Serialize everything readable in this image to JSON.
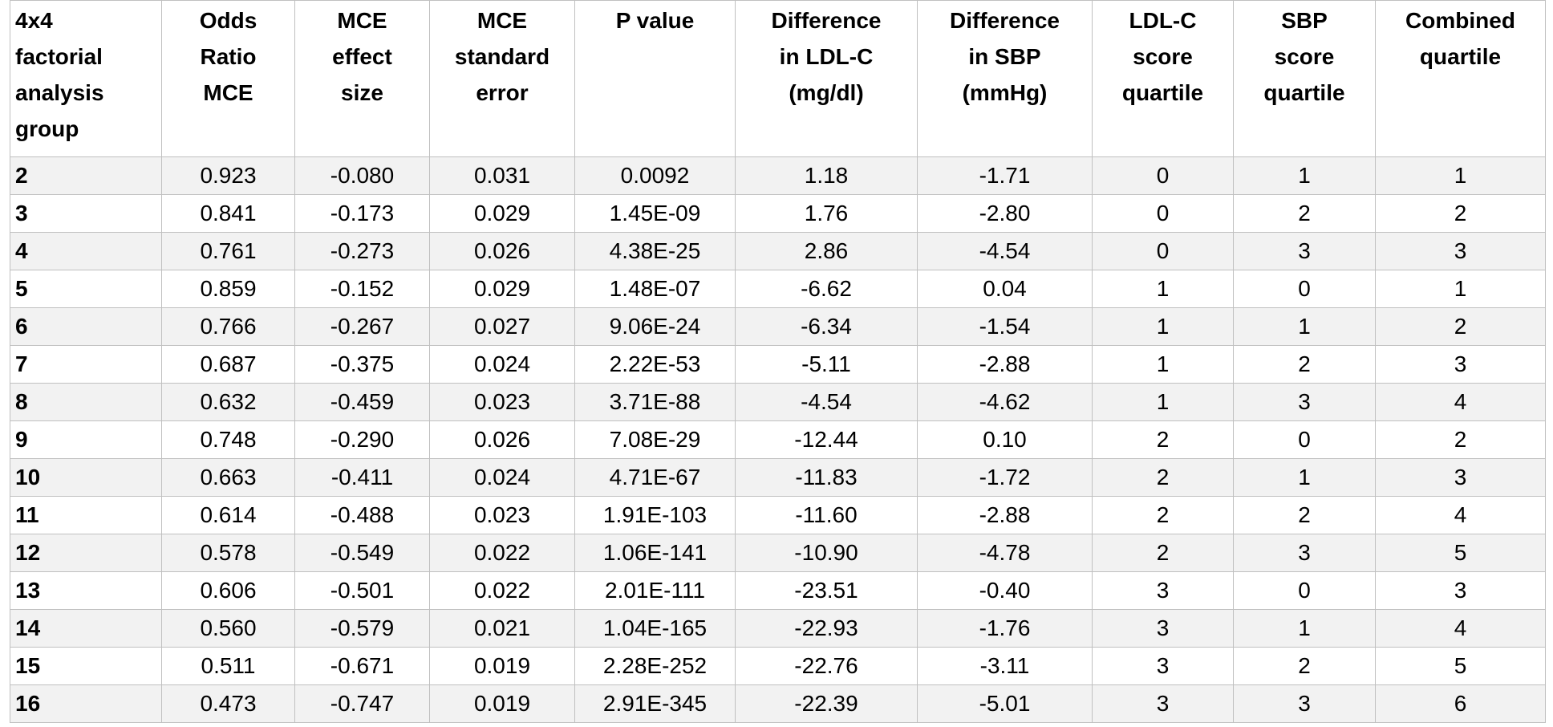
{
  "table": {
    "header": [
      [
        "4x4",
        "factorial",
        "analysis",
        "group"
      ],
      [
        "Odds",
        "Ratio",
        "MCE"
      ],
      [
        "MCE",
        "effect",
        "size"
      ],
      [
        "MCE",
        "standard",
        "error"
      ],
      [
        "P value"
      ],
      [
        "Difference",
        "in LDL-C",
        "(mg/dl)"
      ],
      [
        "Difference",
        "in SBP",
        "(mmHg)"
      ],
      [
        "LDL-C",
        "score",
        "quartile"
      ],
      [
        "SBP",
        "score",
        "quartile"
      ],
      [
        "Combined",
        "quartile"
      ]
    ],
    "rows": [
      [
        "2",
        "0.923",
        "-0.080",
        "0.031",
        "0.0092",
        "1.18",
        "-1.71",
        "0",
        "1",
        "1"
      ],
      [
        "3",
        "0.841",
        "-0.173",
        "0.029",
        "1.45E-09",
        "1.76",
        "-2.80",
        "0",
        "2",
        "2"
      ],
      [
        "4",
        "0.761",
        "-0.273",
        "0.026",
        "4.38E-25",
        "2.86",
        "-4.54",
        "0",
        "3",
        "3"
      ],
      [
        "5",
        "0.859",
        "-0.152",
        "0.029",
        "1.48E-07",
        "-6.62",
        "0.04",
        "1",
        "0",
        "1"
      ],
      [
        "6",
        "0.766",
        "-0.267",
        "0.027",
        "9.06E-24",
        "-6.34",
        "-1.54",
        "1",
        "1",
        "2"
      ],
      [
        "7",
        "0.687",
        "-0.375",
        "0.024",
        "2.22E-53",
        "-5.11",
        "-2.88",
        "1",
        "2",
        "3"
      ],
      [
        "8",
        "0.632",
        "-0.459",
        "0.023",
        "3.71E-88",
        "-4.54",
        "-4.62",
        "1",
        "3",
        "4"
      ],
      [
        "9",
        "0.748",
        "-0.290",
        "0.026",
        "7.08E-29",
        "-12.44",
        "0.10",
        "2",
        "0",
        "2"
      ],
      [
        "10",
        "0.663",
        "-0.411",
        "0.024",
        "4.71E-67",
        "-11.83",
        "-1.72",
        "2",
        "1",
        "3"
      ],
      [
        "11",
        "0.614",
        "-0.488",
        "0.023",
        "1.91E-103",
        "-11.60",
        "-2.88",
        "2",
        "2",
        "4"
      ],
      [
        "12",
        "0.578",
        "-0.549",
        "0.022",
        "1.06E-141",
        "-10.90",
        "-4.78",
        "2",
        "3",
        "5"
      ],
      [
        "13",
        "0.606",
        "-0.501",
        "0.022",
        "2.01E-111",
        "-23.51",
        "-0.40",
        "3",
        "0",
        "3"
      ],
      [
        "14",
        "0.560",
        "-0.579",
        "0.021",
        "1.04E-165",
        "-22.93",
        "-1.76",
        "3",
        "1",
        "4"
      ],
      [
        "15",
        "0.511",
        "-0.671",
        "0.019",
        "2.28E-252",
        "-22.76",
        "-3.11",
        "3",
        "2",
        "5"
      ],
      [
        "16",
        "0.473",
        "-0.747",
        "0.019",
        "2.91E-345",
        "-22.39",
        "-5.01",
        "3",
        "3",
        "6"
      ]
    ]
  }
}
